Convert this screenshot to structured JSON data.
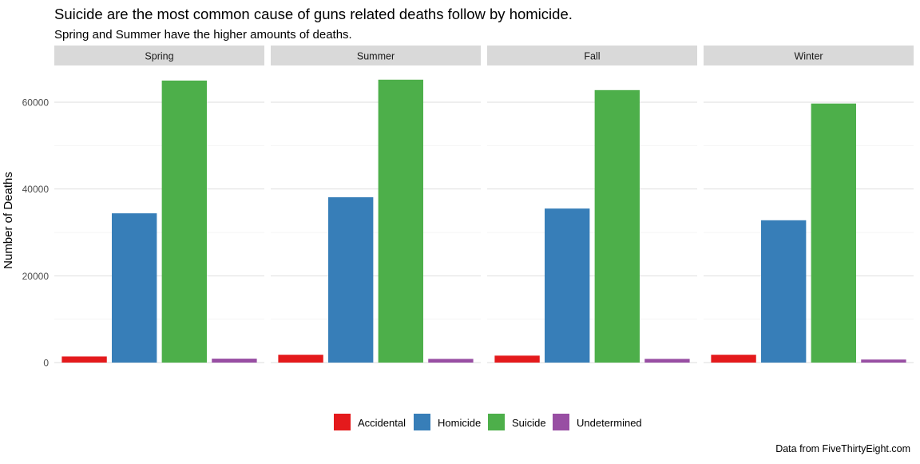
{
  "chart_data": {
    "type": "bar",
    "title": "Suicide are the most common cause of guns related deaths follow by homicide.",
    "subtitle": "Spring and Summer have the higher amounts of deaths.",
    "caption": "Data from FiveThirtyEight.com",
    "xlabel": "",
    "ylabel": "Number of Deaths",
    "ylim": [
      0,
      67000
    ],
    "yticks": [
      0,
      20000,
      40000,
      60000
    ],
    "ytick_labels": [
      "0",
      "20000",
      "40000",
      "60000"
    ],
    "grid": true,
    "legend_position": "bottom",
    "facets": [
      "Spring",
      "Summer",
      "Fall",
      "Winter"
    ],
    "categories": [
      "Accidental",
      "Homicide",
      "Suicide",
      "Undetermined"
    ],
    "colors": {
      "Accidental": "#E41A1C",
      "Homicide": "#377EB8",
      "Suicide": "#4DAF4A",
      "Undetermined": "#984EA3"
    },
    "series": [
      {
        "facet": "Spring",
        "values": [
          1400,
          34400,
          65000,
          900
        ]
      },
      {
        "facet": "Summer",
        "values": [
          1800,
          38100,
          65200,
          850
        ]
      },
      {
        "facet": "Fall",
        "values": [
          1600,
          35500,
          62800,
          850
        ]
      },
      {
        "facet": "Winter",
        "values": [
          1800,
          32800,
          59700,
          700
        ]
      }
    ]
  }
}
